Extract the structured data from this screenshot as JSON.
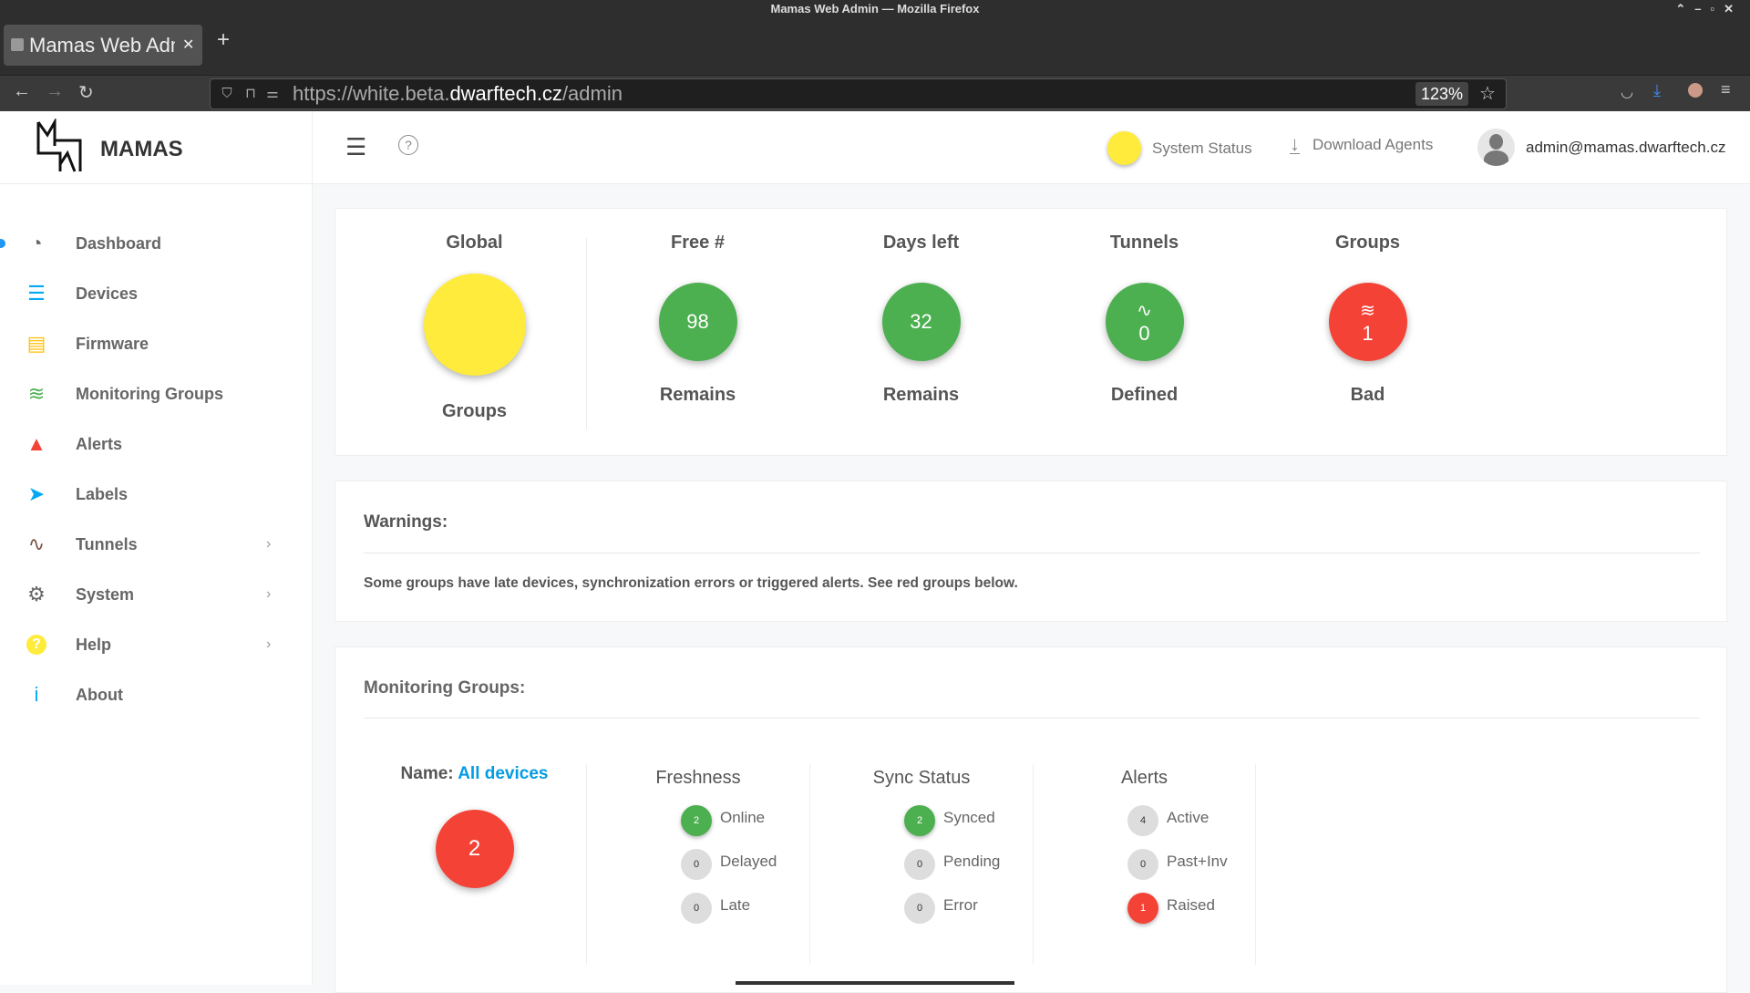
{
  "browser": {
    "window_title": "Mamas Web Admin — Mozilla Firefox",
    "tab_title": "Mamas Web Admin",
    "url_prefix": "https://white.beta.",
    "url_domain": "dwarftech.cz",
    "url_path": "/admin",
    "zoom": "123%"
  },
  "brand": {
    "name": "MAMAS"
  },
  "header": {
    "system_status": "System Status",
    "download_agents": "Download Agents",
    "user": "admin@mamas.dwarftech.cz",
    "status_color": "#ffeb3b"
  },
  "sidebar": {
    "items": [
      {
        "label": "Dashboard",
        "icon": "dashboard-icon",
        "color": "#666666",
        "active": true
      },
      {
        "label": "Devices",
        "icon": "list-icon",
        "color": "#03a9f4"
      },
      {
        "label": "Firmware",
        "icon": "file-icon",
        "color": "#ffc107"
      },
      {
        "label": "Monitoring Groups",
        "icon": "layers-icon",
        "color": "#4caf50"
      },
      {
        "label": "Alerts",
        "icon": "warning-icon",
        "color": "#f44336"
      },
      {
        "label": "Labels",
        "icon": "tags-icon",
        "color": "#03a9f4"
      },
      {
        "label": "Tunnels",
        "icon": "route-icon",
        "color": "#795548",
        "submenu": true
      },
      {
        "label": "System",
        "icon": "gear-icon",
        "color": "#666666",
        "submenu": true
      },
      {
        "label": "Help",
        "icon": "question-icon",
        "color": "#ffeb3b",
        "submenu": true
      },
      {
        "label": "About",
        "icon": "info-icon",
        "color": "#03a9f4"
      }
    ]
  },
  "stats": [
    {
      "title": "Global",
      "value": "",
      "label": "Groups",
      "color": "#ffeb3b"
    },
    {
      "title": "Free #",
      "value": "98",
      "label": "Remains",
      "color": "#4caf50"
    },
    {
      "title": "Days left",
      "value": "32",
      "label": "Remains",
      "color": "#4caf50"
    },
    {
      "title": "Tunnels",
      "value": "0",
      "label": "Defined",
      "color": "#4caf50",
      "icon": "route-icon"
    },
    {
      "title": "Groups",
      "value": "1",
      "label": "Bad",
      "color": "#f44336",
      "icon": "layers-icon"
    }
  ],
  "warnings": {
    "title": "Warnings:",
    "text": "Some groups have late devices, synchronization errors or triggered alerts. See red groups below."
  },
  "monitoring": {
    "title": "Monitoring Groups:",
    "name_label": "Name:",
    "name": "All devices",
    "count": "2",
    "count_color": "#f44336",
    "columns": [
      {
        "title": "Freshness",
        "rows": [
          {
            "value": "2",
            "label": "Online",
            "color": "#4caf50"
          },
          {
            "value": "0",
            "label": "Delayed",
            "color": "#dddddd"
          },
          {
            "value": "0",
            "label": "Late",
            "color": "#dddddd"
          }
        ]
      },
      {
        "title": "Sync Status",
        "rows": [
          {
            "value": "2",
            "label": "Synced",
            "color": "#4caf50"
          },
          {
            "value": "0",
            "label": "Pending",
            "color": "#dddddd"
          },
          {
            "value": "0",
            "label": "Error",
            "color": "#dddddd"
          }
        ]
      },
      {
        "title": "Alerts",
        "rows": [
          {
            "value": "4",
            "label": "Active",
            "color": "#dddddd"
          },
          {
            "value": "0",
            "label": "Past+Inv",
            "color": "#dddddd"
          },
          {
            "value": "1",
            "label": "Raised",
            "color": "#f44336"
          }
        ]
      }
    ]
  }
}
